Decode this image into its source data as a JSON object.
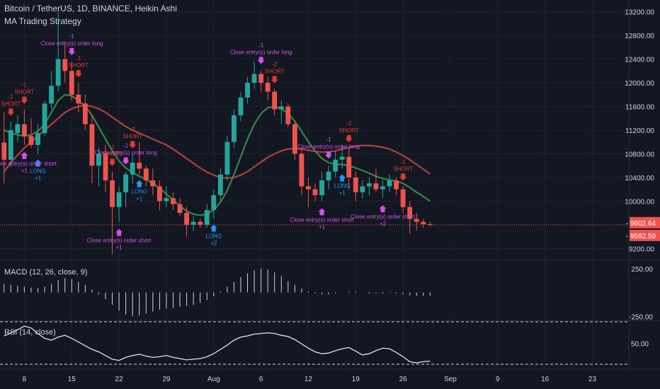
{
  "header": {
    "title": "Bitcoin / TetherUS, 1D, BINANCE, Heikin Ashi",
    "strategy": "MA Trading Strategy"
  },
  "panes": {
    "macd_label": "MACD (12, 26, close, 9)",
    "rsi_label": "RSI (14, close)"
  },
  "colors": {
    "background": "#131722",
    "grid": "#1e222d",
    "up": "#26a69a",
    "down": "#ef5350",
    "ma_fast": "#3f8f4a",
    "ma_slow": "#c0463f",
    "long": "#2196f3",
    "short": "#e53935",
    "close": "#d152e6",
    "text": "#d1d4dc",
    "price_tag": "#ef5350"
  },
  "chart_data": {
    "type": "candlestick",
    "candles": [
      {
        "o": 10990,
        "h": 11500,
        "l": 10300,
        "c": 10700
      },
      {
        "o": 10700,
        "h": 11350,
        "l": 10580,
        "c": 11200
      },
      {
        "o": 11150,
        "h": 11450,
        "l": 11000,
        "c": 11300
      },
      {
        "o": 11300,
        "h": 11550,
        "l": 10950,
        "c": 11100
      },
      {
        "o": 11100,
        "h": 11400,
        "l": 10900,
        "c": 10950
      },
      {
        "o": 10950,
        "h": 11300,
        "l": 10800,
        "c": 11150
      },
      {
        "o": 11150,
        "h": 11700,
        "l": 11100,
        "c": 11650
      },
      {
        "o": 11650,
        "h": 12200,
        "l": 11550,
        "c": 11950
      },
      {
        "o": 11950,
        "h": 13200,
        "l": 11850,
        "c": 12400
      },
      {
        "o": 12400,
        "h": 12700,
        "l": 12000,
        "c": 12200
      },
      {
        "o": 12200,
        "h": 12350,
        "l": 11700,
        "c": 11800
      },
      {
        "o": 11800,
        "h": 12000,
        "l": 11500,
        "c": 11650
      },
      {
        "o": 11650,
        "h": 11800,
        "l": 11200,
        "c": 11300
      },
      {
        "o": 11300,
        "h": 11450,
        "l": 10300,
        "c": 10600
      },
      {
        "o": 10600,
        "h": 10900,
        "l": 10250,
        "c": 10800
      },
      {
        "o": 10800,
        "h": 10950,
        "l": 10150,
        "c": 10350
      },
      {
        "o": 10350,
        "h": 10500,
        "l": 9100,
        "c": 9900
      },
      {
        "o": 9900,
        "h": 10250,
        "l": 9650,
        "c": 10150
      },
      {
        "o": 10150,
        "h": 10500,
        "l": 9900,
        "c": 10450
      },
      {
        "o": 10450,
        "h": 10800,
        "l": 10300,
        "c": 10650
      },
      {
        "o": 10650,
        "h": 11000,
        "l": 10450,
        "c": 10550
      },
      {
        "o": 10550,
        "h": 10600,
        "l": 10250,
        "c": 10350
      },
      {
        "o": 10350,
        "h": 10550,
        "l": 10100,
        "c": 10250
      },
      {
        "o": 10250,
        "h": 10350,
        "l": 9850,
        "c": 10000
      },
      {
        "o": 10000,
        "h": 10250,
        "l": 9900,
        "c": 10050
      },
      {
        "o": 10050,
        "h": 10150,
        "l": 9850,
        "c": 9950
      },
      {
        "o": 9950,
        "h": 10050,
        "l": 9750,
        "c": 9800
      },
      {
        "o": 9800,
        "h": 9900,
        "l": 9400,
        "c": 9600
      },
      {
        "o": 9600,
        "h": 9750,
        "l": 9500,
        "c": 9650
      },
      {
        "o": 9650,
        "h": 9700,
        "l": 9550,
        "c": 9600
      },
      {
        "o": 9600,
        "h": 9950,
        "l": 9550,
        "c": 9850
      },
      {
        "o": 9850,
        "h": 10200,
        "l": 9700,
        "c": 10100
      },
      {
        "o": 10100,
        "h": 10550,
        "l": 10000,
        "c": 10450
      },
      {
        "o": 10450,
        "h": 11100,
        "l": 10350,
        "c": 11000
      },
      {
        "o": 11000,
        "h": 11550,
        "l": 10900,
        "c": 11450
      },
      {
        "o": 11450,
        "h": 11850,
        "l": 11350,
        "c": 11750
      },
      {
        "o": 11750,
        "h": 12100,
        "l": 11650,
        "c": 12000
      },
      {
        "o": 12000,
        "h": 12350,
        "l": 11900,
        "c": 12150
      },
      {
        "o": 12150,
        "h": 12200,
        "l": 11850,
        "c": 12000
      },
      {
        "o": 12000,
        "h": 12100,
        "l": 11700,
        "c": 11850
      },
      {
        "o": 11850,
        "h": 11900,
        "l": 11450,
        "c": 11550
      },
      {
        "o": 11550,
        "h": 11700,
        "l": 11300,
        "c": 11600
      },
      {
        "o": 11600,
        "h": 11650,
        "l": 11250,
        "c": 11300
      },
      {
        "o": 11300,
        "h": 11350,
        "l": 10700,
        "c": 10800
      },
      {
        "o": 10800,
        "h": 10900,
        "l": 10100,
        "c": 10250
      },
      {
        "o": 10250,
        "h": 10400,
        "l": 9900,
        "c": 10200
      },
      {
        "o": 10200,
        "h": 10300,
        "l": 10000,
        "c": 10100
      },
      {
        "o": 10100,
        "h": 10500,
        "l": 10000,
        "c": 10350
      },
      {
        "o": 10350,
        "h": 10600,
        "l": 10200,
        "c": 10500
      },
      {
        "o": 10500,
        "h": 10850,
        "l": 10400,
        "c": 10700
      },
      {
        "o": 10700,
        "h": 10950,
        "l": 10550,
        "c": 10750
      },
      {
        "o": 10750,
        "h": 10900,
        "l": 10200,
        "c": 10400
      },
      {
        "o": 10400,
        "h": 10500,
        "l": 10000,
        "c": 10150
      },
      {
        "o": 10150,
        "h": 10350,
        "l": 10050,
        "c": 10250
      },
      {
        "o": 10250,
        "h": 10400,
        "l": 10100,
        "c": 10300
      },
      {
        "o": 10300,
        "h": 10550,
        "l": 10150,
        "c": 10200
      },
      {
        "o": 10200,
        "h": 10350,
        "l": 10050,
        "c": 10250
      },
      {
        "o": 10250,
        "h": 10450,
        "l": 10150,
        "c": 10350
      },
      {
        "o": 10350,
        "h": 10400,
        "l": 10100,
        "c": 10200
      },
      {
        "o": 10200,
        "h": 10250,
        "l": 9800,
        "c": 9900
      },
      {
        "o": 9900,
        "h": 10000,
        "l": 9450,
        "c": 9700
      },
      {
        "o": 9700,
        "h": 9800,
        "l": 9500,
        "c": 9650
      },
      {
        "o": 9650,
        "h": 9700,
        "l": 9550,
        "c": 9610
      },
      {
        "o": 9610,
        "h": 9650,
        "l": 9570,
        "c": 9600
      }
    ],
    "ma_fast": [
      11200,
      11150,
      11120,
      11100,
      11120,
      11180,
      11300,
      11500,
      11700,
      11800,
      11780,
      11700,
      11600,
      11450,
      11250,
      11050,
      10850,
      10680,
      10560,
      10480,
      10420,
      10370,
      10300,
      10220,
      10120,
      10020,
      9920,
      9830,
      9780,
      9760,
      9780,
      9850,
      9980,
      10180,
      10450,
      10750,
      11050,
      11300,
      11480,
      11580,
      11600,
      11560,
      11480,
      11350,
      11180,
      11000,
      10850,
      10720,
      10650,
      10620,
      10620,
      10600,
      10560,
      10520,
      10470,
      10420,
      10380,
      10360,
      10340,
      10300,
      10230,
      10150,
      10080,
      10000
    ],
    "ma_slow": [
      10500,
      10650,
      10780,
      10900,
      11000,
      11100,
      11200,
      11300,
      11400,
      11500,
      11560,
      11600,
      11620,
      11600,
      11560,
      11500,
      11420,
      11340,
      11260,
      11200,
      11150,
      11100,
      11050,
      11000,
      10950,
      10880,
      10800,
      10720,
      10640,
      10560,
      10490,
      10440,
      10400,
      10390,
      10400,
      10440,
      10500,
      10580,
      10660,
      10740,
      10800,
      10850,
      10880,
      10890,
      10880,
      10860,
      10840,
      10830,
      10830,
      10850,
      10880,
      10910,
      10930,
      10940,
      10940,
      10930,
      10910,
      10880,
      10830,
      10770,
      10700,
      10620,
      10540,
      10460
    ],
    "macd": [
      90,
      80,
      70,
      60,
      50,
      45,
      60,
      90,
      130,
      150,
      140,
      110,
      80,
      30,
      -20,
      -70,
      -130,
      -190,
      -230,
      -250,
      -240,
      -220,
      -200,
      -180,
      -170,
      -160,
      -150,
      -140,
      -130,
      -110,
      -80,
      -40,
      10,
      60,
      110,
      160,
      200,
      230,
      250,
      240,
      210,
      170,
      120,
      80,
      40,
      10,
      -10,
      -20,
      -20,
      -10,
      0,
      10,
      10,
      0,
      -10,
      -10,
      -10,
      -5,
      -10,
      -20,
      -30,
      -35,
      -35,
      -35
    ],
    "rsi": [
      62,
      67,
      72,
      78,
      75,
      66,
      58,
      55,
      60,
      63,
      58,
      52,
      46,
      40,
      36,
      30,
      24,
      22,
      27,
      30,
      32,
      29,
      27,
      28,
      30,
      27,
      25,
      23,
      24,
      25,
      28,
      33,
      40,
      47,
      55,
      60,
      62,
      65,
      66,
      67,
      66,
      63,
      61,
      56,
      49,
      42,
      36,
      33,
      34,
      38,
      41,
      43,
      37,
      31,
      33,
      38,
      42,
      41,
      35,
      28,
      20,
      18,
      20,
      21
    ],
    "price_axis": {
      "min": 9000,
      "max": 13400,
      "ticks": [
        13200,
        12800,
        12400,
        12000,
        11600,
        11200,
        10800,
        10400,
        10000,
        9200
      ]
    },
    "macd_ticks": [
      250.0,
      -250.0
    ],
    "rsi_ticks": [
      50.0
    ],
    "price_tags": [
      "9602.64",
      "9592.59"
    ],
    "x_axis": {
      "labels": [
        "8",
        "15",
        "22",
        "29",
        "Aug",
        "6",
        "12",
        "19",
        "26",
        "Sep",
        "9",
        "16",
        "23"
      ],
      "label_bars": [
        3,
        10,
        17,
        24,
        31,
        38,
        45,
        52,
        59,
        66,
        73,
        80,
        87
      ],
      "total_slots": 93
    },
    "signals": [
      {
        "bar": 1,
        "type": "short",
        "text": "SHORT",
        "qty": "-1"
      },
      {
        "bar": 3,
        "type": "short",
        "text": "SHORT",
        "qty": "-1"
      },
      {
        "bar": 5,
        "type": "long",
        "text": "LONG",
        "qty": "+1"
      },
      {
        "bar": 3,
        "type": "close",
        "text": "Close entry(s) order short",
        "qty": "+1"
      },
      {
        "bar": 10,
        "type": "close",
        "text": "Close entry(s) order long",
        "qty": "-1"
      },
      {
        "bar": 11,
        "type": "short",
        "text": "SHORT",
        "qty": "-1"
      },
      {
        "bar": 16,
        "type": "short",
        "text": "SHORT",
        "qty": "-1"
      },
      {
        "bar": 18,
        "type": "close",
        "text": "Close entry(s) order long",
        "qty": "-1"
      },
      {
        "bar": 19,
        "type": "short",
        "text": "SHORT",
        "qty": "-2"
      },
      {
        "bar": 17,
        "type": "close",
        "text": "Close entry(s) order short",
        "qty": "+1"
      },
      {
        "bar": 20,
        "type": "long",
        "text": "LONG",
        "qty": "+1"
      },
      {
        "bar": 31,
        "type": "long",
        "text": "LONG",
        "qty": "+2"
      },
      {
        "bar": 38,
        "type": "close",
        "text": "Close entry(s) order long",
        "qty": "-1"
      },
      {
        "bar": 40,
        "type": "short",
        "text": "SHORT",
        "qty": "-2"
      },
      {
        "bar": 48,
        "type": "close",
        "text": "Close entry(s) order long",
        "qty": "-1"
      },
      {
        "bar": 51,
        "type": "short",
        "text": "SHORT",
        "qty": "-2"
      },
      {
        "bar": 47,
        "type": "close",
        "text": "Close entry(s) order short",
        "qty": "+1"
      },
      {
        "bar": 50,
        "type": "long",
        "text": "LONG",
        "qty": "+1"
      },
      {
        "bar": 56,
        "type": "close",
        "text": "Close entry(s) order short",
        "qty": "+2"
      },
      {
        "bar": 59,
        "type": "short",
        "text": "SHORT",
        "qty": "-1"
      }
    ]
  }
}
